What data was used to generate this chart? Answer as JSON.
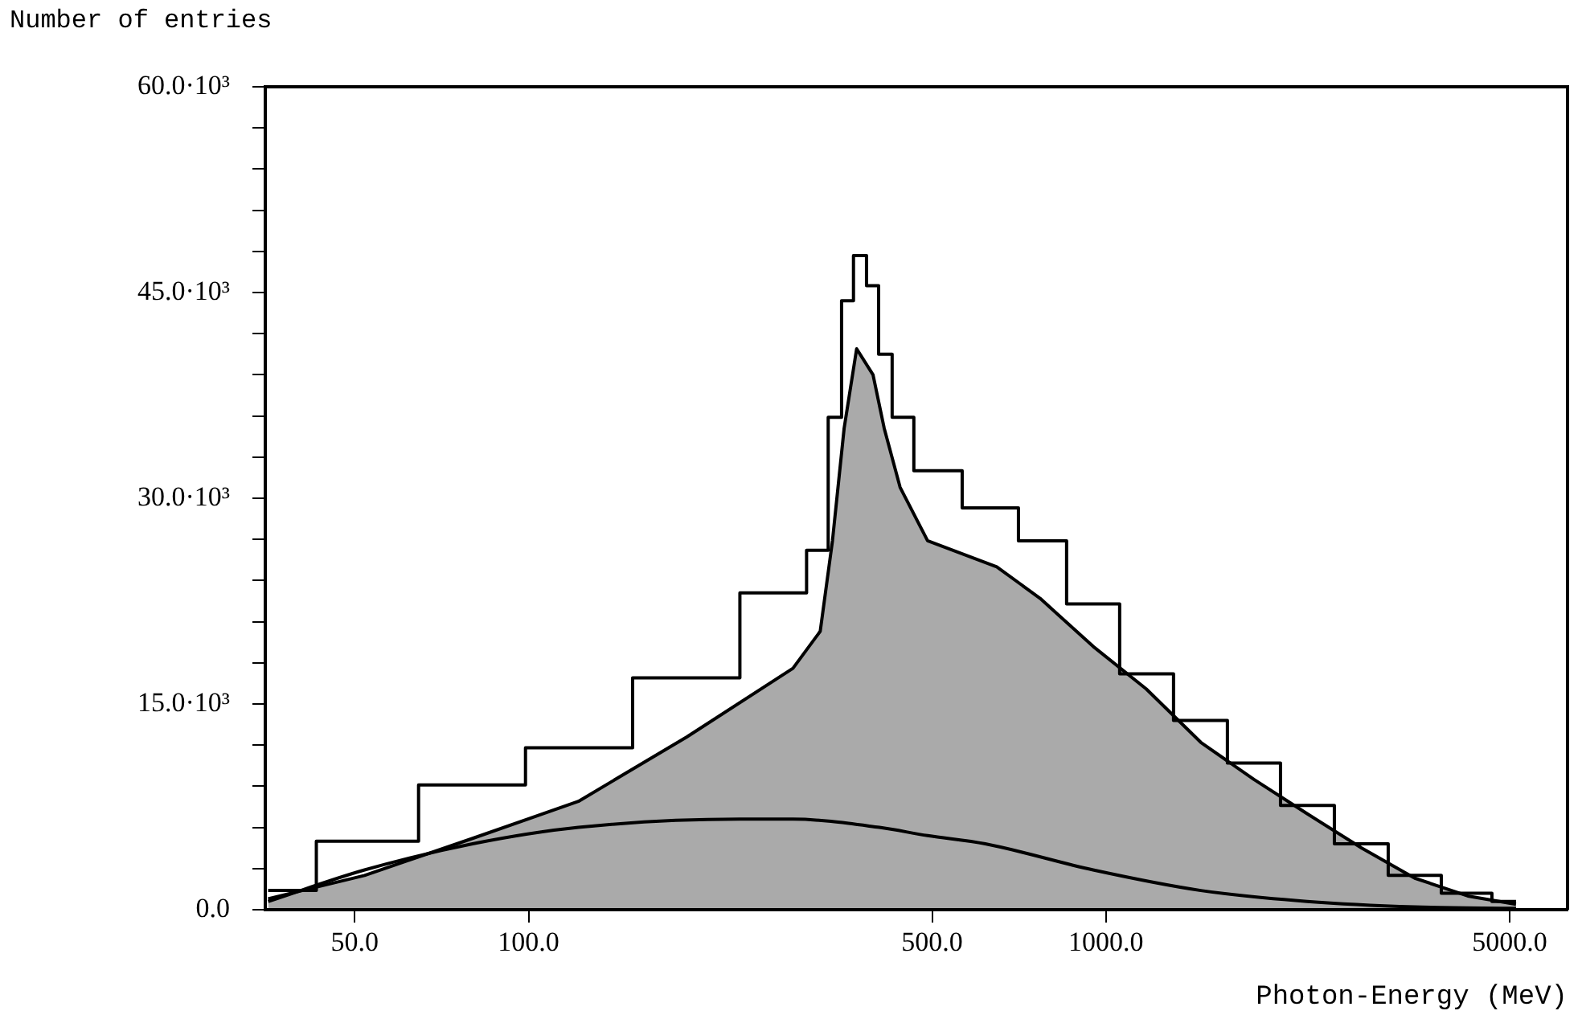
{
  "chart_data": {
    "type": "step",
    "xlabel": "Photon-Energy (MeV)",
    "ylabel": "Number of entries",
    "log": "x",
    "grid": false,
    "legend": false,
    "xlim": [
      35,
      6300
    ],
    "ylim": [
      0,
      60000
    ],
    "xticks": [
      {
        "value": 50,
        "label": "50.0"
      },
      {
        "value": 100,
        "label": "100.0"
      },
      {
        "value": 500,
        "label": "500.0"
      },
      {
        "value": 1000,
        "label": "1000.0"
      },
      {
        "value": 5000,
        "label": "5000.0"
      }
    ],
    "yticks": [
      {
        "value": 0,
        "label": "0.0"
      },
      {
        "value": 3000,
        "label": null
      },
      {
        "value": 6000,
        "label": null
      },
      {
        "value": 9000,
        "label": null
      },
      {
        "value": 12000,
        "label": null
      },
      {
        "value": 15000,
        "label": "15.0·10³"
      },
      {
        "value": 18000,
        "label": null
      },
      {
        "value": 21000,
        "label": null
      },
      {
        "value": 24000,
        "label": null
      },
      {
        "value": 27000,
        "label": null
      },
      {
        "value": 30000,
        "label": "30.0·10³"
      },
      {
        "value": 33000,
        "label": null
      },
      {
        "value": 36000,
        "label": null
      },
      {
        "value": 39000,
        "label": null
      },
      {
        "value": 42000,
        "label": null
      },
      {
        "value": 45000,
        "label": "45.0·10³"
      },
      {
        "value": 48000,
        "label": null
      },
      {
        "value": 51000,
        "label": null
      },
      {
        "value": 54000,
        "label": null
      },
      {
        "value": 57000,
        "label": null
      },
      {
        "value": 60000,
        "label": "60.0·10³"
      }
    ],
    "series": [
      {
        "color": "#000000",
        "x": [
          35.4,
          52,
          80,
          122,
          188,
          287,
          320,
          341,
          356,
          375,
          395,
          413,
          440,
          491,
          647,
          769,
          950,
          1174,
          1460,
          1804,
          2230,
          2772,
          3426,
          4233,
          5130
        ],
        "values": [
          1400,
          5000,
          9100,
          11800,
          16900,
          23100,
          26200,
          35900,
          44400,
          47700,
          45500,
          40500,
          35900,
          32000,
          29300,
          26900,
          22300,
          17200,
          13800,
          10700,
          7600,
          4800,
          2500,
          1200,
          600
        ]
      },
      {
        "type": "area",
        "color": "#000000",
        "x": [
          35.4,
          52,
          80,
          122,
          188,
          287,
          320,
          336,
          352,
          370,
          395,
          413,
          440,
          491,
          647,
          769,
          950,
          1174,
          1460,
          1804,
          2230,
          2772,
          3426,
          4233,
          5130
        ],
        "values": [
          800,
          2500,
          5200,
          7900,
          12600,
          17600,
          20300,
          26900,
          35100,
          40900,
          39000,
          35100,
          30800,
          26900,
          25000,
          22700,
          19200,
          16100,
          12200,
          9500,
          7000,
          4500,
          2300,
          1000,
          400
        ]
      },
      {
        "type": "line",
        "color": "#000000",
        "x": [
          35.4,
          52,
          80,
          122,
          232,
          287,
          405,
          491,
          618,
          950,
          1460,
          2230,
          3426,
          5130
        ],
        "values": [
          600,
          2900,
          4800,
          6000,
          6600,
          6600,
          6000,
          5400,
          4800,
          2900,
          1400,
          600,
          200,
          100
        ]
      }
    ]
  }
}
